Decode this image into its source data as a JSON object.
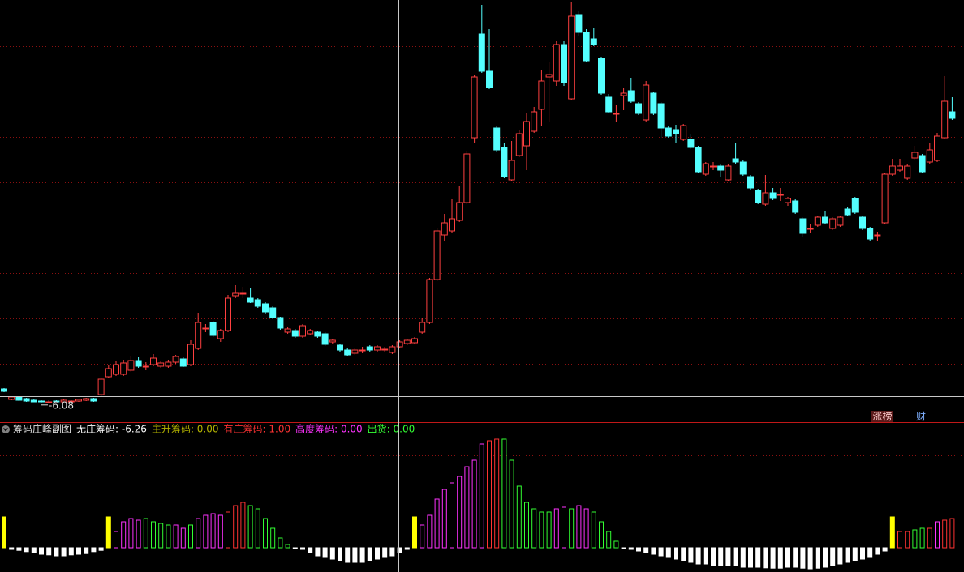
{
  "chart_data": [
    {
      "type": "candlestick",
      "low_marker": -6.08,
      "ylim": [
        -8.4,
        43.6
      ],
      "up_color": "#ff4040",
      "down_color": "#54ffff",
      "open": [
        -4.4,
        -5.7,
        -5.4,
        -5.6,
        -5.8,
        -5.9,
        -6.0,
        -5.9,
        -6.0,
        -5.9,
        -5.9,
        -5.8,
        -5.6,
        -5.1,
        -2.9,
        -2.6,
        -2.6,
        -2.1,
        -0.9,
        -1.6,
        -1.4,
        -1.6,
        -1.6,
        -1.1,
        -0.7,
        -1.4,
        0.6,
        3.1,
        3.8,
        1.8,
        2.8,
        7.1,
        7.4,
        6.8,
        6.6,
        6.1,
        5.6,
        4.4,
        2.6,
        2.8,
        2.1,
        2.4,
        2.6,
        2.4,
        1.4,
        1.0,
        0.4,
        0.0,
        0.4,
        0.8,
        0.4,
        0.5,
        0.1,
        0.8,
        1.2,
        1.3,
        2.6,
        3.8,
        9.1,
        14.6,
        15.1,
        16.4,
        18.6,
        26.6,
        39.4,
        34.8,
        27.8,
        25.4,
        21.4,
        24.4,
        25.6,
        27.4,
        30.1,
        34.1,
        33.6,
        38.1,
        31.4,
        41.8,
        39.6,
        38.8,
        36.4,
        31.6,
        29.6,
        31.8,
        32.4,
        30.8,
        28.8,
        32.1,
        30.8,
        27.8,
        27.6,
        26.4,
        26.4,
        25.4,
        22.1,
        23.1,
        23.1,
        21.4,
        24.0,
        23.6,
        21.8,
        20.1,
        18.4,
        19.8,
        19.6,
        18.6,
        18.8,
        16.6,
        15.4,
        15.8,
        16.8,
        15.4,
        15.8,
        17.8,
        19.1,
        16.8,
        15.4,
        14.6,
        16.1,
        22.1,
        22.6,
        21.6,
        24.1,
        24.4,
        23.6,
        23.8,
        26.6,
        29.8
      ],
      "high": [
        -4.3,
        -5.3,
        -5.3,
        -5.5,
        -5.7,
        -5.8,
        -5.8,
        -5.8,
        -5.7,
        -5.8,
        -5.6,
        -5.5,
        -5.5,
        -3.0,
        -1.4,
        -0.9,
        -0.8,
        -0.4,
        -0.5,
        -1.1,
        -0.1,
        -1.0,
        -0.8,
        -0.2,
        -0.5,
        1.6,
        5.0,
        3.6,
        4.0,
        3.0,
        7.2,
        8.4,
        8.2,
        8.0,
        6.8,
        6.3,
        5.8,
        4.5,
        3.2,
        3.0,
        3.6,
        3.0,
        2.8,
        2.6,
        1.8,
        1.2,
        0.6,
        0.6,
        0.8,
        1.0,
        1.0,
        0.8,
        1.0,
        1.6,
        1.8,
        2.0,
        4.4,
        9.3,
        15.5,
        17.2,
        19.0,
        20.6,
        25.0,
        34.3,
        43.0,
        40.0,
        28.0,
        26.0,
        26.2,
        27.5,
        29.6,
        30.4,
        35.0,
        36.0,
        38.5,
        38.5,
        43.3,
        42.2,
        40.0,
        40.2,
        36.6,
        32.0,
        30.6,
        32.8,
        34.0,
        31.0,
        33.6,
        32.3,
        31.0,
        28.0,
        28.2,
        28.3,
        27.0,
        25.6,
        23.6,
        23.6,
        23.3,
        23.3,
        26.0,
        23.8,
        22.0,
        20.3,
        22.0,
        20.4,
        20.4,
        19.3,
        19.0,
        16.8,
        16.0,
        17.0,
        17.6,
        16.8,
        17.0,
        18.0,
        19.3,
        17.0,
        15.6,
        15.0,
        22.3,
        24.0,
        24.0,
        23.3,
        25.6,
        24.6,
        26.0,
        27.2,
        34.2,
        31.6
      ],
      "low": [
        -4.8,
        -5.8,
        -5.9,
        -6.0,
        -6.05,
        -6.08,
        -6.05,
        -6.05,
        -6.05,
        -6.0,
        -6.0,
        -5.9,
        -6.0,
        -5.3,
        -3.1,
        -2.8,
        -2.8,
        -2.3,
        -1.8,
        -2.1,
        -1.6,
        -1.8,
        -1.8,
        -1.3,
        -1.7,
        -1.6,
        0.4,
        2.6,
        2.0,
        1.4,
        2.6,
        6.8,
        6.8,
        6.2,
        5.6,
        4.9,
        4.2,
        2.9,
        2.4,
        1.9,
        1.9,
        2.2,
        1.9,
        0.9,
        1.2,
        0.2,
        -0.4,
        -0.2,
        0.0,
        0.2,
        0.2,
        0.2,
        -0.1,
        0.6,
        1.0,
        1.1,
        2.4,
        3.6,
        8.9,
        13.8,
        14.8,
        16.2,
        18.4,
        26.0,
        34.6,
        32.6,
        24.9,
        21.6,
        21.2,
        24.2,
        22.6,
        27.2,
        28.0,
        28.6,
        33.0,
        33.0,
        31.2,
        39.2,
        35.9,
        37.9,
        31.9,
        29.6,
        28.6,
        30.0,
        30.9,
        29.4,
        28.6,
        29.4,
        26.6,
        26.6,
        26.0,
        26.2,
        25.2,
        22.2,
        21.9,
        22.6,
        21.8,
        21.2,
        23.4,
        21.9,
        20.2,
        18.4,
        18.2,
        18.9,
        18.8,
        18.2,
        17.2,
        14.4,
        14.8,
        15.6,
        15.9,
        15.2,
        15.6,
        16.9,
        17.2,
        15.2,
        13.9,
        13.8,
        15.9,
        21.9,
        22.4,
        21.4,
        23.9,
        22.2,
        23.4,
        23.6,
        26.4,
        28.8
      ],
      "close": [
        -4.7,
        -5.4,
        -5.8,
        -5.9,
        -6.0,
        -6.0,
        -6.0,
        -6.0,
        -5.8,
        -5.9,
        -5.7,
        -5.6,
        -5.9,
        -3.2,
        -1.9,
        -1.4,
        -1.2,
        -0.9,
        -1.6,
        -1.6,
        -0.6,
        -1.2,
        -1.1,
        -0.4,
        -1.6,
        1.1,
        3.8,
        3.1,
        2.2,
        2.8,
        6.8,
        7.4,
        7.4,
        6.3,
        5.8,
        5.1,
        4.4,
        3.1,
        3.0,
        2.1,
        3.4,
        2.8,
        2.1,
        1.1,
        1.6,
        0.4,
        -0.2,
        0.4,
        0.4,
        0.4,
        0.8,
        0.5,
        0.8,
        1.4,
        1.6,
        1.8,
        3.8,
        9.1,
        15.1,
        16.1,
        16.6,
        18.6,
        24.6,
        34.1,
        34.8,
        32.8,
        25.1,
        21.8,
        23.8,
        27.1,
        28.6,
        29.8,
        33.6,
        34.4,
        38.1,
        33.4,
        41.6,
        39.6,
        36.1,
        38.1,
        32.1,
        29.8,
        29.6,
        32.1,
        31.1,
        29.6,
        33.1,
        29.6,
        27.8,
        26.8,
        27.1,
        28.1,
        25.4,
        22.4,
        23.4,
        23.1,
        22.6,
        23.1,
        23.6,
        22.1,
        20.4,
        18.6,
        19.8,
        19.1,
        19.6,
        19.1,
        17.4,
        14.8,
        15.4,
        16.8,
        16.1,
        16.6,
        16.8,
        17.1,
        17.4,
        15.4,
        14.1,
        14.6,
        22.1,
        23.1,
        23.1,
        23.1,
        24.8,
        22.4,
        25.1,
        26.8,
        31.1,
        29.0
      ]
    },
    {
      "type": "bar",
      "title": "筹码庄峰副图",
      "legend": [
        {
          "label": "无庄筹码: -6.26",
          "color": "#ffffff"
        },
        {
          "label": "主升筹码: 0.00",
          "color": "#b4b400"
        },
        {
          "label": "有庄筹码: 1.00",
          "color": "#ff3333"
        },
        {
          "label": "高度筹码: 0.00",
          "color": "#ff33ff"
        },
        {
          "label": "出货: 0.00",
          "color": "#33ff33"
        }
      ],
      "ylim": [
        -7.5,
        37.75
      ],
      "solid_colors": [
        "#ffff00",
        "#ffffff"
      ],
      "values": [
        9.5,
        -0.5,
        -0.8,
        -1.2,
        -1.5,
        -2,
        -2.2,
        -2.5,
        -2.5,
        -2.2,
        -2,
        -1.8,
        -1.2,
        -0.8,
        9.5,
        5,
        8,
        9,
        8.5,
        9,
        8,
        7.5,
        7,
        7,
        6,
        7,
        9,
        10,
        10.5,
        10,
        11,
        13,
        14,
        13,
        12,
        9,
        6,
        3,
        1,
        -0.3,
        -0.5,
        -1.5,
        -2.5,
        -3,
        -3.5,
        -4,
        -4.5,
        -4.5,
        -4.5,
        -4,
        -3.5,
        -3,
        -2.5,
        -1.5,
        -0.5,
        9.5,
        7,
        10,
        15,
        18,
        20,
        22,
        25,
        27,
        32,
        33,
        33.5,
        33.5,
        27,
        19,
        14,
        12,
        11,
        11,
        12,
        12.5,
        12,
        13,
        12,
        11,
        8,
        5,
        2,
        -0.3,
        -0.5,
        -1,
        -1.5,
        -2,
        -2.5,
        -3,
        -3.5,
        -4,
        -4.5,
        -5,
        -5,
        -5.5,
        -5.5,
        -5.5,
        -5.5,
        -6,
        -6,
        -6,
        -6.2,
        -6.3,
        -6.3,
        -6,
        -6,
        -6.3,
        -6.5,
        -6.3,
        -6,
        -5.5,
        -5,
        -4.5,
        -4,
        -3.5,
        -3,
        -2,
        -1,
        9.5,
        5,
        5,
        5.5,
        6,
        6,
        8,
        8.5,
        9
      ],
      "colors": [
        "#ffff00",
        "#ffffff",
        "#ffffff",
        "#ffffff",
        "#ffffff",
        "#ffffff",
        "#ffffff",
        "#ffffff",
        "#ffffff",
        "#ffffff",
        "#ffffff",
        "#ffffff",
        "#ffffff",
        "#ffffff",
        "#ffff00",
        "#ff33ff",
        "#ff33ff",
        "#ff33ff",
        "#ff33ff",
        "#33ff33",
        "#33ff33",
        "#33ff33",
        "#33ff33",
        "#ff33ff",
        "#ff33ff",
        "#33ff33",
        "#ff33ff",
        "#ff33ff",
        "#ff33ff",
        "#ff33ff",
        "#ff3333",
        "#ff3333",
        "#ff3333",
        "#33ff33",
        "#33ff33",
        "#33ff33",
        "#33ff33",
        "#33ff33",
        "#33ff33",
        "#ffffff",
        "#ffffff",
        "#ffffff",
        "#ffffff",
        "#ffffff",
        "#ffffff",
        "#ffffff",
        "#ffffff",
        "#ffffff",
        "#ffffff",
        "#ffffff",
        "#ffffff",
        "#ffffff",
        "#ffffff",
        "#ffffff",
        "#ffffff",
        "#ffff00",
        "#ff33ff",
        "#ff33ff",
        "#ff33ff",
        "#ff33ff",
        "#ff33ff",
        "#ff33ff",
        "#ff33ff",
        "#ff33ff",
        "#ff33ff",
        "#ff3333",
        "#ff3333",
        "#33ff33",
        "#33ff33",
        "#33ff33",
        "#33ff33",
        "#33ff33",
        "#33ff33",
        "#33ff33",
        "#ff33ff",
        "#ff33ff",
        "#33ff33",
        "#ff33ff",
        "#ff33ff",
        "#33ff33",
        "#33ff33",
        "#33ff33",
        "#33ff33",
        "#ffffff",
        "#ffffff",
        "#ffffff",
        "#ffffff",
        "#ffffff",
        "#ffffff",
        "#ffffff",
        "#ffffff",
        "#ffffff",
        "#ffffff",
        "#ffffff",
        "#ffffff",
        "#ffffff",
        "#ffffff",
        "#ffffff",
        "#ffffff",
        "#ffffff",
        "#ffffff",
        "#ffffff",
        "#ffffff",
        "#ffffff",
        "#ffffff",
        "#ffffff",
        "#ffffff",
        "#ffffff",
        "#ffffff",
        "#ffffff",
        "#ffffff",
        "#ffffff",
        "#ffffff",
        "#ffffff",
        "#ffffff",
        "#ffffff",
        "#ffffff",
        "#ffffff",
        "#ffffff",
        "#ffff00",
        "#ff3333",
        "#ff3333",
        "#33ff33",
        "#33ff33",
        "#ff3333",
        "#ff33ff",
        "#ff3333",
        "#ff3333"
      ]
    }
  ],
  "toolbar": {
    "buttons": [
      "涨榜",
      "财"
    ]
  }
}
